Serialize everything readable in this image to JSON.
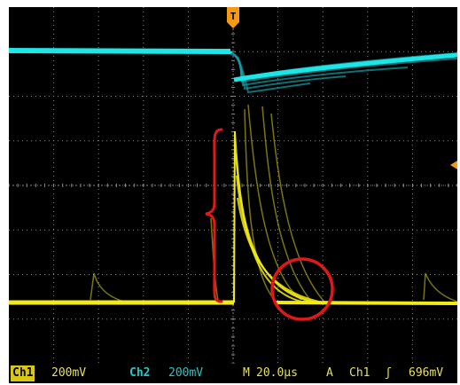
{
  "colors": {
    "screen_bg": "#000000",
    "grid": "#8a8a8a",
    "ch1": "#f2ea16",
    "ch1_persist": "#a39c18",
    "ch2": "#1ee6e6",
    "ch2_persist": "#159ea6",
    "trigger_marker": "#f39a16",
    "annotation": "#e01818",
    "status_text": "#e6e05a",
    "ch1_tag_bg": "#d6c814",
    "ch2_tag_text": "#22c8c8"
  },
  "trigger_marker": {
    "label": "T",
    "icon": "trigger-position-icon"
  },
  "trigger_level_icon": "trigger-level-arrow-icon",
  "annotations": {
    "brace": "curly-brace",
    "circle": "circle-highlight"
  },
  "status": {
    "ch1": {
      "tag": "Ch1",
      "scale": "200mV"
    },
    "ch2": {
      "tag": "Ch2",
      "scale": "200mV"
    },
    "timebase": {
      "prefix": "M",
      "value": "20.0µs"
    },
    "trigger": {
      "mode": "A",
      "source": "Ch1",
      "slope_symbol": "ʃ",
      "level": "696mV"
    }
  }
}
